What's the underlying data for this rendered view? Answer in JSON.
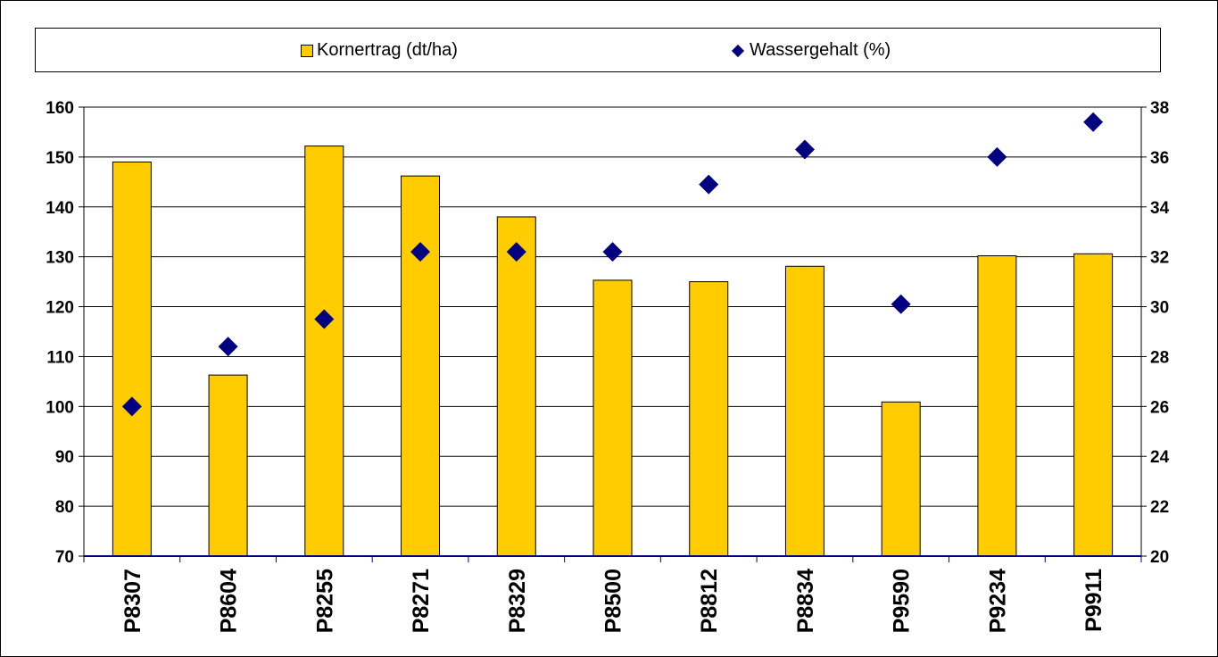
{
  "colors": {
    "bar": "#FFCC00",
    "marker": "#000080",
    "axis": "#000080",
    "grid": "#000000"
  },
  "legend": {
    "bar_label": "Kornertrag (dt/ha)",
    "marker_label": "Wassergehalt (%)"
  },
  "chart_data": {
    "type": "bar",
    "categories": [
      "P8307",
      "P8604",
      "P8255",
      "P8271",
      "P8329",
      "P8500",
      "P8812",
      "P8834",
      "P9590",
      "P9234",
      "P9911"
    ],
    "series": [
      {
        "name": "Kornertrag (dt/ha)",
        "type": "bar",
        "axis": "left",
        "values": [
          149,
          106.3,
          152.2,
          146.2,
          138,
          125.3,
          125,
          128.1,
          100.9,
          130.2,
          130.6
        ]
      },
      {
        "name": "Wassergehalt (%)",
        "type": "scatter",
        "axis": "right",
        "values": [
          26.0,
          28.4,
          29.5,
          32.2,
          32.2,
          32.2,
          34.9,
          36.3,
          30.1,
          36.0,
          37.4
        ]
      }
    ],
    "ylim_left": [
      70,
      160
    ],
    "yticks_left": [
      "70",
      "80",
      "90",
      "100",
      "110",
      "120",
      "130",
      "140",
      "150",
      "160"
    ],
    "ylim_right": [
      20,
      38
    ],
    "yticks_right": [
      "20",
      "22",
      "24",
      "26",
      "28",
      "30",
      "32",
      "34",
      "36",
      "38"
    ],
    "grid": true,
    "legend_position": "top"
  }
}
